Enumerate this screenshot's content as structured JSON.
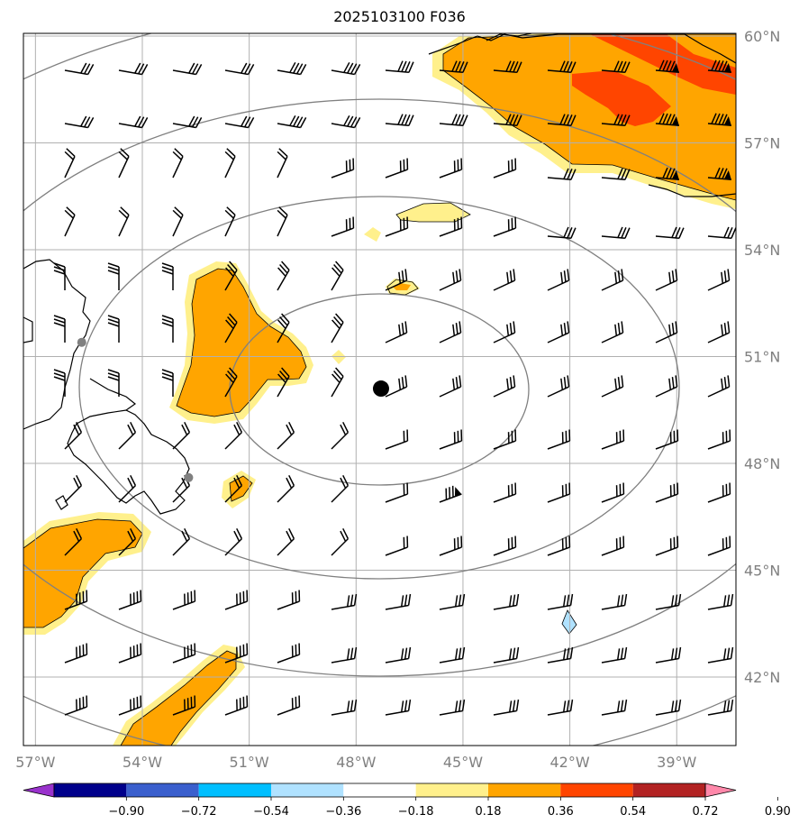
{
  "title": "2025103100 F036",
  "map": {
    "lon_range": [
      -57.2,
      -37.5
    ],
    "lat_range": [
      40.0,
      60.0
    ],
    "grid_color": "#b0b0b0",
    "ring_color": "#808080",
    "coast_color": "#000000",
    "center_marker": {
      "lon": -47.3,
      "lat": 50.1
    },
    "stations": [
      {
        "lon": -55.7,
        "lat": 51.4
      },
      {
        "lon": -52.7,
        "lat": 47.6
      }
    ],
    "lat_ticks": [
      {
        "value": 60,
        "label": "60°N"
      },
      {
        "value": 57,
        "label": "57°N"
      },
      {
        "value": 54,
        "label": "54°N"
      },
      {
        "value": 51,
        "label": "51°N"
      },
      {
        "value": 48,
        "label": "48°N"
      },
      {
        "value": 45,
        "label": "45°N"
      },
      {
        "value": 42,
        "label": "42°N"
      }
    ],
    "lon_ticks": [
      {
        "value": -57,
        "label": "57°W"
      },
      {
        "value": -54,
        "label": "54°W"
      },
      {
        "value": -51,
        "label": "51°W"
      },
      {
        "value": -48,
        "label": "48°W"
      },
      {
        "value": -45,
        "label": "45°W"
      },
      {
        "value": -42,
        "label": "42°W"
      },
      {
        "value": -39,
        "label": "39°W"
      }
    ]
  },
  "colorbar": {
    "colors": [
      "#9932cc",
      "#00008b",
      "#3a5fcd",
      "#00bfff",
      "#b0e2ff",
      "#ffffff",
      "#fff08c",
      "#ffa500",
      "#ff4500",
      "#b22222",
      "#ff88aa"
    ],
    "labels": [
      "−0.90",
      "−0.72",
      "−0.54",
      "−0.36",
      "−0.18",
      "0.18",
      "0.36",
      "0.54",
      "0.72",
      "0.90"
    ]
  }
}
